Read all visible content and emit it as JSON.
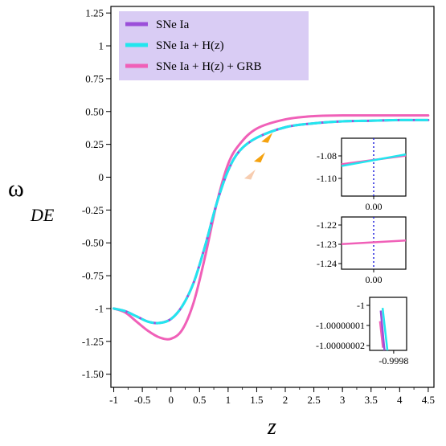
{
  "chart_data": {
    "type": "line",
    "xlabel": "z",
    "ylabel_main": "ω",
    "ylabel_sub": "DE",
    "xlim": [
      -1.05,
      4.6
    ],
    "ylim": [
      -1.6,
      1.3
    ],
    "x_ticks": [
      -1,
      -0.5,
      0,
      0.5,
      1,
      1.5,
      2,
      2.5,
      3,
      3.5,
      4,
      4.5
    ],
    "x_tick_labels": [
      "-1",
      "-0.5",
      "0",
      "0.5",
      "1",
      "1.5",
      "2",
      "2.5",
      "3",
      "3.5",
      "4",
      "4.5"
    ],
    "y_ticks": [
      -1.5,
      -1.25,
      -1,
      -0.75,
      -0.5,
      -0.25,
      0,
      0.25,
      0.5,
      0.75,
      1,
      1.25
    ],
    "y_tick_labels": [
      "-1.50",
      "-1.25",
      "-1",
      "-0.75",
      "-0.50",
      "-0.25",
      "0",
      "0.25",
      "0.50",
      "0.75",
      "1",
      "1.25"
    ],
    "legend_placement": "top-left",
    "legend_background": "#d9ccf4",
    "series": [
      {
        "name": "SNe Ia",
        "color": "#9b4fd9",
        "style": "solid",
        "x": [
          -1,
          -0.8,
          -0.6,
          -0.4,
          -0.2,
          0,
          0.2,
          0.4,
          0.6,
          0.8,
          1,
          1.2,
          1.5,
          2,
          2.5,
          3,
          3.5,
          4,
          4.5
        ],
        "y": [
          -1.0,
          -1.02,
          -1.06,
          -1.1,
          -1.11,
          -1.08,
          -0.98,
          -0.8,
          -0.52,
          -0.2,
          0.05,
          0.2,
          0.3,
          0.38,
          0.41,
          0.425,
          0.43,
          0.435,
          0.435
        ]
      },
      {
        "name": "SNe Ia + H(z)",
        "color": "#22e6ee",
        "style": "dashed",
        "x": [
          -1,
          -0.8,
          -0.6,
          -0.4,
          -0.2,
          0,
          0.2,
          0.4,
          0.6,
          0.8,
          1,
          1.2,
          1.5,
          2,
          2.5,
          3,
          3.5,
          4,
          4.5
        ],
        "y": [
          -1.0,
          -1.02,
          -1.06,
          -1.1,
          -1.11,
          -1.08,
          -0.98,
          -0.8,
          -0.52,
          -0.2,
          0.05,
          0.2,
          0.3,
          0.38,
          0.41,
          0.425,
          0.43,
          0.435,
          0.435
        ]
      },
      {
        "name": "SNe Ia + H(z) + GRB",
        "color": "#f060b8",
        "style": "solid",
        "x": [
          -1,
          -0.8,
          -0.6,
          -0.4,
          -0.2,
          0,
          0.2,
          0.4,
          0.6,
          0.8,
          1,
          1.2,
          1.5,
          2,
          2.5,
          3,
          3.5,
          4,
          4.5
        ],
        "y": [
          -1.0,
          -1.03,
          -1.1,
          -1.17,
          -1.22,
          -1.23,
          -1.16,
          -0.95,
          -0.6,
          -0.2,
          0.1,
          0.25,
          0.37,
          0.44,
          0.465,
          0.47,
          0.47,
          0.47,
          0.47
        ]
      }
    ],
    "markers": [
      {
        "x": 1.68,
        "y": 0.3,
        "color": "#f5a20f"
      },
      {
        "x": 1.55,
        "y": 0.15,
        "color": "#f5a20f"
      },
      {
        "x": 1.38,
        "y": 0.02,
        "color": "#f7cdb0"
      }
    ],
    "insets": [
      {
        "y_tick_labels": [
          "-1.08",
          "-1.10"
        ],
        "x_tick_labels": [
          "0.00"
        ],
        "lines": [
          {
            "color": "#f060b8",
            "from": [
              0,
              0.45
            ],
            "to": [
              1,
              0.3
            ]
          },
          {
            "color": "#22e6ee",
            "from": [
              0,
              0.48
            ],
            "to": [
              1,
              0.28
            ]
          }
        ],
        "vline_color": "#2222dd"
      },
      {
        "y_tick_labels": [
          "-1.22",
          "-1.23",
          "-1.24"
        ],
        "x_tick_labels": [
          "0.00"
        ],
        "lines": [
          {
            "color": "#f060b8",
            "from": [
              0,
              0.52
            ],
            "to": [
              1,
              0.45
            ]
          }
        ],
        "vline_color": "#2222dd"
      },
      {
        "y_tick_labels": [
          "-1",
          "-1.00000001",
          "-1.00000002"
        ],
        "x_tick_labels": [
          "-0.9998"
        ],
        "lines": [
          {
            "color": "#f060b8",
            "from": [
              0.28,
              0.45
            ],
            "to": [
              0.36,
              0.95
            ]
          },
          {
            "color": "#9b4fd9",
            "from": [
              0.3,
              0.25
            ],
            "to": [
              0.4,
              1.0
            ]
          },
          {
            "color": "#22e6ee",
            "from": [
              0.35,
              0.2
            ],
            "to": [
              0.48,
              1.0
            ]
          }
        ],
        "vline_color": ""
      }
    ]
  }
}
